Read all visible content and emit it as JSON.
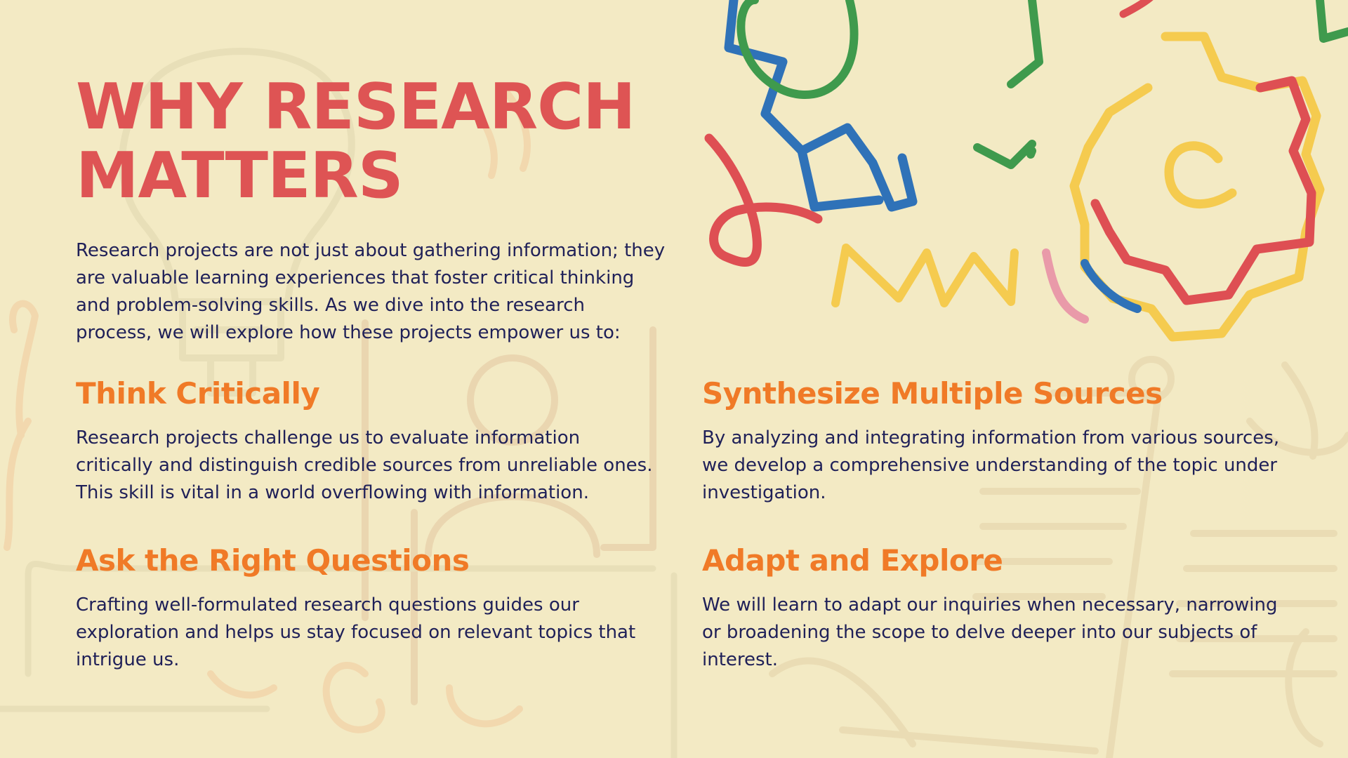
{
  "slide": {
    "title": "WHY RESEARCH MATTERS",
    "intro": "Research projects are not just about gathering information; they are valuable learning experiences that foster critical thinking and problem-solving skills. As we dive into the research process, we will explore how these projects empower us to:",
    "sections": [
      {
        "heading": "Think Critically",
        "body": "Research projects challenge us to evaluate information critically and distinguish credible sources from unreliable ones. This skill is vital in a world overflowing with information."
      },
      {
        "heading": "Synthesize Multiple Sources",
        "body": "By analyzing and integrating information from various sources, we develop a comprehensive understanding of the topic under investigation."
      },
      {
        "heading": "Ask the Right Questions",
        "body": "Crafting well-formulated research questions guides our exploration and helps us stay focused on relevant topics that intrigue us."
      },
      {
        "heading": "Adapt and Explore",
        "body": "We will learn to adapt our inquiries when necessary, narrowing or broadening the scope to delve deeper into our subjects of interest."
      }
    ]
  },
  "decor": {
    "icons": [
      "gear-icon-blue",
      "gear-icon-green",
      "gear-icon-yellow",
      "gear-icon-red",
      "squiggle-red-icon",
      "zigzag-yellow-icon",
      "curve-pink-icon",
      "curve-blue-icon",
      "lightbulb-outline-icon",
      "person-outline-icon",
      "document-outline-icon"
    ]
  },
  "colors": {
    "background": "#f3eac4",
    "title": "#de5454",
    "heading": "#f07a27",
    "body": "#1f2058",
    "gear_blue": "#2f72b8",
    "gear_green": "#3f9a4d",
    "gear_yellow": "#f5cb4f",
    "gear_red": "#de4f53",
    "accent_pink": "#e99aa9"
  }
}
